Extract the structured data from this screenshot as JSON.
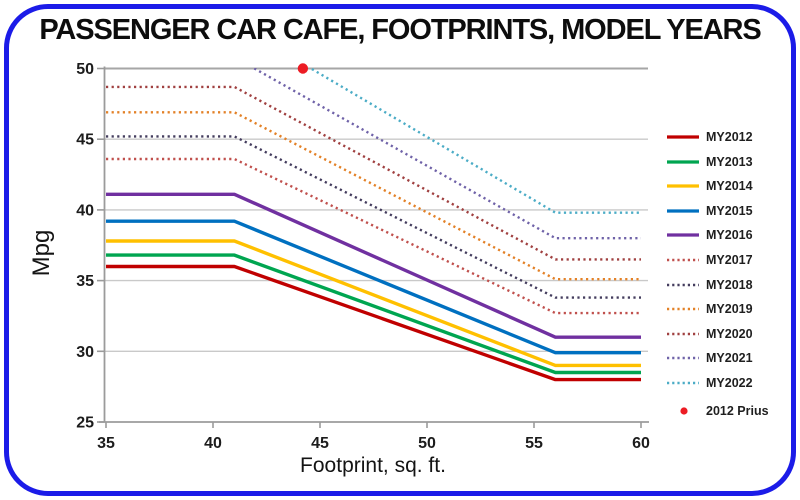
{
  "window": {
    "frame_border_color": "#1b1be8",
    "background_color": "#ffffff"
  },
  "chart_data": {
    "type": "line",
    "title": "PASSENGER CAR CAFE, FOOTPRINTS, MODEL YEARS",
    "xlabel": "Footprint, sq. ft.",
    "ylabel": "Mpg",
    "xlim": [
      35,
      60
    ],
    "ylim": [
      25,
      50
    ],
    "x_ticks": [
      35,
      40,
      45,
      50,
      55,
      60
    ],
    "y_ticks": [
      25,
      30,
      35,
      40,
      45,
      50
    ],
    "grid": "horizontal",
    "legend_position": "right",
    "series": [
      {
        "name": "MY2012",
        "style": "solid",
        "color": "#C00000",
        "x": [
          35,
          41,
          56,
          60
        ],
        "y": [
          36.0,
          36.0,
          28.0,
          28.0
        ]
      },
      {
        "name": "MY2013",
        "style": "solid",
        "color": "#00A550",
        "x": [
          35,
          41,
          56,
          60
        ],
        "y": [
          36.8,
          36.8,
          28.5,
          28.5
        ]
      },
      {
        "name": "MY2014",
        "style": "solid",
        "color": "#FFC000",
        "x": [
          35,
          41,
          56,
          60
        ],
        "y": [
          37.8,
          37.8,
          29.0,
          29.0
        ]
      },
      {
        "name": "MY2015",
        "style": "solid",
        "color": "#0070C0",
        "x": [
          35,
          41,
          56,
          60
        ],
        "y": [
          39.2,
          39.2,
          29.9,
          29.9
        ]
      },
      {
        "name": "MY2016",
        "style": "solid",
        "color": "#7030A0",
        "x": [
          35,
          41,
          56,
          60
        ],
        "y": [
          41.1,
          41.1,
          31.0,
          31.0
        ]
      },
      {
        "name": "MY2017",
        "style": "dotted",
        "color": "#C0504D",
        "x": [
          35,
          41,
          56,
          60
        ],
        "y": [
          43.6,
          43.6,
          32.7,
          32.7
        ]
      },
      {
        "name": "MY2018",
        "style": "dotted",
        "color": "#443D5E",
        "x": [
          35,
          41,
          56,
          60
        ],
        "y": [
          45.2,
          45.2,
          33.8,
          33.8
        ]
      },
      {
        "name": "MY2019",
        "style": "dotted",
        "color": "#E38127",
        "x": [
          35,
          41,
          56,
          60
        ],
        "y": [
          46.9,
          46.9,
          35.1,
          35.1
        ]
      },
      {
        "name": "MY2020",
        "style": "dotted",
        "color": "#A04040",
        "x": [
          35,
          41,
          56,
          60
        ],
        "y": [
          48.7,
          48.7,
          36.5,
          36.5
        ]
      },
      {
        "name": "MY2021",
        "style": "dotted",
        "color": "#6F62A8",
        "x": [
          35,
          41,
          56,
          60
        ],
        "y": [
          50.8,
          50.8,
          38.0,
          38.0
        ]
      },
      {
        "name": "MY2022",
        "style": "dotted",
        "color": "#4BACC6",
        "x": [
          35,
          41,
          56,
          60
        ],
        "y": [
          53.2,
          53.2,
          39.8,
          39.8
        ]
      }
    ],
    "point_series": [
      {
        "name": "2012 Prius",
        "color": "#EC1C24",
        "x": 44.2,
        "y": 50
      }
    ]
  },
  "style_tokens": {
    "gridline_color": "#C9C9C9",
    "top_gridline_color": "#A6A6A6",
    "axis_color": "#9B9B9B",
    "tick_label_color": "#1C1C1C"
  }
}
